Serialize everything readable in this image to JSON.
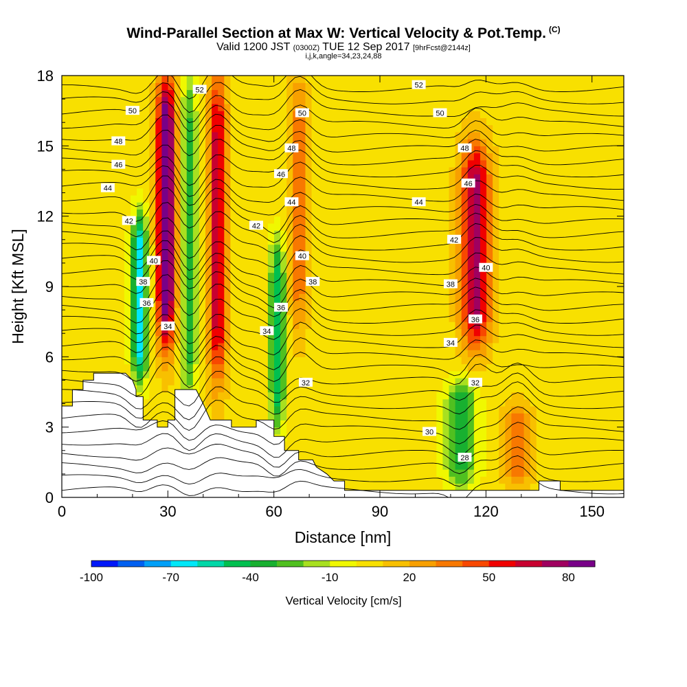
{
  "title": {
    "main": "Wind-Parallel Section at Max W: Vertical Velocity & Pot.Temp.",
    "copyright": "(C)",
    "valid_prefix": "Valid 1200 JST",
    "valid_utc": "(0300Z)",
    "valid_date": "TUE 12 Sep 2017",
    "forecast": "[9hrFcst@2144z]",
    "indices": "i,j,k,angle=34,23,24,88"
  },
  "colorbar": {
    "label": "Vertical Velocity [cm/s]",
    "levels": [
      -100,
      -90,
      -80,
      -70,
      -60,
      -50,
      -40,
      -30,
      -20,
      -10,
      0,
      10,
      20,
      30,
      40,
      50,
      60,
      70,
      80,
      90
    ],
    "tick_labels": [
      "-100",
      "-70",
      "-40",
      "-10",
      "20",
      "50",
      "80"
    ],
    "colors": [
      "#0018f8",
      "#0060f0",
      "#00a0f8",
      "#00e8f8",
      "#00d8a8",
      "#00c050",
      "#18b030",
      "#50c020",
      "#a8e020",
      "#f0f800",
      "#f8e000",
      "#f8c000",
      "#f8a000",
      "#f87800",
      "#f84800",
      "#f00000",
      "#c80030",
      "#a00060",
      "#780088"
    ]
  },
  "chart_data": {
    "type": "heatmap",
    "xlabel": "Distance [nm]",
    "ylabel": "Height [Kft MSL]",
    "xlim": [
      0,
      159
    ],
    "ylim": [
      0,
      18
    ],
    "xticks": [
      0,
      30,
      60,
      90,
      120,
      150
    ],
    "yticks": [
      0,
      3,
      6,
      9,
      12,
      15,
      18
    ],
    "shaded_field": "Vertical Velocity [cm/s]",
    "contour_field": "Potential Temperature (C)",
    "contour_labels": [
      {
        "value": "52",
        "x": 39,
        "y": 17.4
      },
      {
        "value": "52",
        "x": 101,
        "y": 17.6
      },
      {
        "value": "50",
        "x": 20,
        "y": 16.5
      },
      {
        "value": "50",
        "x": 68,
        "y": 16.4
      },
      {
        "value": "50",
        "x": 107,
        "y": 16.4
      },
      {
        "value": "48",
        "x": 16,
        "y": 15.2
      },
      {
        "value": "48",
        "x": 65,
        "y": 14.9
      },
      {
        "value": "48",
        "x": 114,
        "y": 14.9
      },
      {
        "value": "46",
        "x": 16,
        "y": 14.2
      },
      {
        "value": "46",
        "x": 62,
        "y": 13.8
      },
      {
        "value": "46",
        "x": 115,
        "y": 13.4
      },
      {
        "value": "44",
        "x": 13,
        "y": 13.2
      },
      {
        "value": "44",
        "x": 65,
        "y": 12.6
      },
      {
        "value": "44",
        "x": 101,
        "y": 12.6
      },
      {
        "value": "42",
        "x": 19,
        "y": 11.8
      },
      {
        "value": "42",
        "x": 55,
        "y": 11.6
      },
      {
        "value": "42",
        "x": 111,
        "y": 11.0
      },
      {
        "value": "40",
        "x": 26,
        "y": 10.1
      },
      {
        "value": "40",
        "x": 68,
        "y": 10.3
      },
      {
        "value": "40",
        "x": 120,
        "y": 9.8
      },
      {
        "value": "38",
        "x": 23,
        "y": 9.2
      },
      {
        "value": "38",
        "x": 71,
        "y": 9.2
      },
      {
        "value": "38",
        "x": 110,
        "y": 9.1
      },
      {
        "value": "36",
        "x": 24,
        "y": 8.3
      },
      {
        "value": "36",
        "x": 62,
        "y": 8.1
      },
      {
        "value": "36",
        "x": 117,
        "y": 7.6
      },
      {
        "value": "34",
        "x": 30,
        "y": 7.3
      },
      {
        "value": "34",
        "x": 58,
        "y": 7.1
      },
      {
        "value": "34",
        "x": 110,
        "y": 6.6
      },
      {
        "value": "32",
        "x": 69,
        "y": 4.9
      },
      {
        "value": "32",
        "x": 117,
        "y": 4.9
      },
      {
        "value": "30",
        "x": 104,
        "y": 2.8
      },
      {
        "value": "28",
        "x": 114,
        "y": 1.7
      }
    ],
    "updraft_cores": [
      {
        "x": 29.5,
        "top": 18,
        "bottom": 6.5,
        "max": 90
      },
      {
        "x": 44,
        "top": 18,
        "bottom": 5,
        "max": 60
      },
      {
        "x": 67,
        "top": 18,
        "bottom": 7,
        "max": 30
      },
      {
        "x": 117,
        "top": 15,
        "bottom": 6.5,
        "max": 70
      },
      {
        "x": 129,
        "top": 4,
        "bottom": 0.5,
        "max": 30
      }
    ],
    "downdraft_cores": [
      {
        "x": 22,
        "top": 12,
        "bottom": 5,
        "min": -70
      },
      {
        "x": 36,
        "top": 18,
        "bottom": 4,
        "min": -40
      },
      {
        "x": 61,
        "top": 11,
        "bottom": 3,
        "min": -50
      },
      {
        "x": 113,
        "top": 5,
        "bottom": 0.5,
        "min": -40
      }
    ]
  }
}
